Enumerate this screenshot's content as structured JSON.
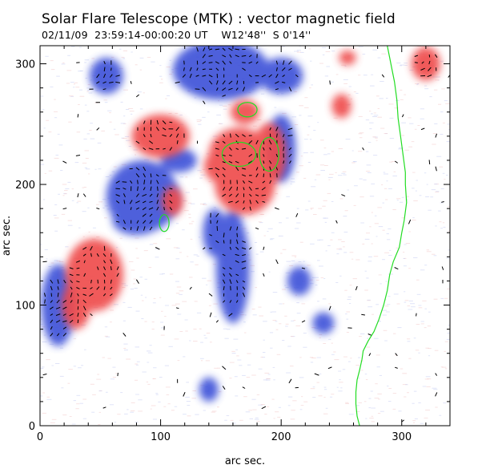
{
  "chart_data": {
    "type": "heatmap",
    "title": "Solar Flare Telescope (MTK) : vector magnetic field",
    "subtitle": "02/11/09  23:59:14-00:00:20 UT    W12'48''  S 0'14''",
    "xlabel": "arc sec.",
    "ylabel": "arc sec.",
    "xlim": [
      0,
      340
    ],
    "ylim": [
      0,
      315
    ],
    "x_ticks": [
      0,
      100,
      200,
      300
    ],
    "y_ticks": [
      0,
      100,
      200,
      300
    ],
    "colors": {
      "positive": "#ef4a4a",
      "negative": "#3b4fd8",
      "vectors": "#000000",
      "contour": "#22dd22",
      "background": "#ffffff"
    },
    "positive_regions": [
      {
        "cx": 45,
        "cy": 125,
        "rx": 24,
        "ry": 30
      },
      {
        "cx": 30,
        "cy": 100,
        "rx": 12,
        "ry": 20
      },
      {
        "cx": 100,
        "cy": 240,
        "rx": 24,
        "ry": 18
      },
      {
        "cx": 110,
        "cy": 186,
        "rx": 9,
        "ry": 12
      },
      {
        "cx": 165,
        "cy": 225,
        "rx": 25,
        "ry": 22
      },
      {
        "cx": 190,
        "cy": 225,
        "rx": 14,
        "ry": 26
      },
      {
        "cx": 170,
        "cy": 200,
        "rx": 25,
        "ry": 25
      },
      {
        "cx": 150,
        "cy": 215,
        "rx": 14,
        "ry": 14
      },
      {
        "cx": 170,
        "cy": 260,
        "rx": 12,
        "ry": 10
      },
      {
        "cx": 250,
        "cy": 265,
        "rx": 8,
        "ry": 10
      },
      {
        "cx": 255,
        "cy": 305,
        "rx": 7,
        "ry": 6
      },
      {
        "cx": 320,
        "cy": 300,
        "rx": 12,
        "ry": 14
      }
    ],
    "negative_regions": [
      {
        "cx": 85,
        "cy": 190,
        "rx": 30,
        "ry": 30
      },
      {
        "cx": 80,
        "cy": 170,
        "rx": 20,
        "ry": 12
      },
      {
        "cx": 200,
        "cy": 230,
        "rx": 12,
        "ry": 28
      },
      {
        "cx": 15,
        "cy": 100,
        "rx": 14,
        "ry": 34
      },
      {
        "cx": 115,
        "cy": 220,
        "rx": 15,
        "ry": 10
      },
      {
        "cx": 150,
        "cy": 295,
        "rx": 40,
        "ry": 25
      },
      {
        "cx": 200,
        "cy": 290,
        "rx": 18,
        "ry": 15
      },
      {
        "cx": 55,
        "cy": 290,
        "rx": 14,
        "ry": 15
      },
      {
        "cx": 160,
        "cy": 130,
        "rx": 14,
        "ry": 45
      },
      {
        "cx": 145,
        "cy": 160,
        "rx": 10,
        "ry": 20
      },
      {
        "cx": 235,
        "cy": 85,
        "rx": 9,
        "ry": 9
      },
      {
        "cx": 140,
        "cy": 30,
        "rx": 8,
        "ry": 10
      },
      {
        "cx": 160,
        "cy": 165,
        "rx": 8,
        "ry": 14
      },
      {
        "cx": 215,
        "cy": 120,
        "rx": 10,
        "ry": 12
      }
    ],
    "limb_contour": [
      [
        288,
        315
      ],
      [
        290,
        305
      ],
      [
        292,
        295
      ],
      [
        294,
        285
      ],
      [
        296,
        270
      ],
      [
        297,
        255
      ],
      [
        299,
        240
      ],
      [
        301,
        225
      ],
      [
        303,
        210
      ],
      [
        303,
        200
      ],
      [
        304,
        185
      ],
      [
        302,
        170
      ],
      [
        300,
        160
      ],
      [
        298,
        148
      ],
      [
        293,
        136
      ],
      [
        290,
        125
      ],
      [
        288,
        112
      ],
      [
        285,
        100
      ],
      [
        281,
        88
      ],
      [
        277,
        78
      ],
      [
        272,
        70
      ],
      [
        268,
        62
      ],
      [
        267,
        55
      ],
      [
        265,
        46
      ],
      [
        263,
        38
      ],
      [
        262,
        28
      ],
      [
        262,
        18
      ],
      [
        263,
        8
      ],
      [
        265,
        0
      ]
    ]
  }
}
